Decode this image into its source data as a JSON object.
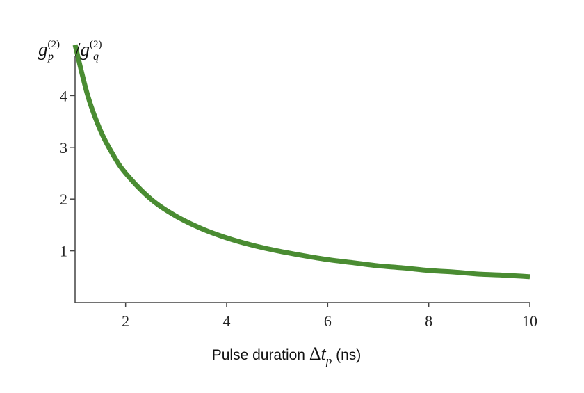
{
  "chart_data": {
    "type": "line",
    "title": "",
    "ylabel": {
      "base_left": "g",
      "sub_left": "p",
      "sup_left": "(2)",
      "slash": "/",
      "base_right": "g",
      "sub_right": "q",
      "sup_right": "(2)"
    },
    "xlabel": {
      "text": "Pulse duration ",
      "symbol": "Δ",
      "var": "t",
      "sub": "p",
      "unit": " (ns)"
    },
    "xlim": [
      1,
      10
    ],
    "ylim": [
      0,
      5
    ],
    "x_ticks": [
      2,
      4,
      6,
      8,
      10
    ],
    "y_ticks": [
      1,
      2,
      3,
      4
    ],
    "grid": false,
    "legend": "none",
    "series": [
      {
        "color": "#4a8c32",
        "x": [
          1.0,
          1.25,
          1.5,
          1.75,
          2.0,
          2.5,
          3.0,
          3.5,
          4.0,
          4.5,
          5.0,
          5.5,
          6.0,
          6.5,
          7.0,
          7.5,
          8.0,
          8.5,
          9.0,
          9.5,
          10.0
        ],
        "y": [
          4.98,
          4.0,
          3.33,
          2.86,
          2.5,
          2.0,
          1.67,
          1.43,
          1.25,
          1.11,
          1.0,
          0.91,
          0.83,
          0.77,
          0.71,
          0.67,
          0.62,
          0.59,
          0.55,
          0.53,
          0.5
        ]
      }
    ]
  }
}
